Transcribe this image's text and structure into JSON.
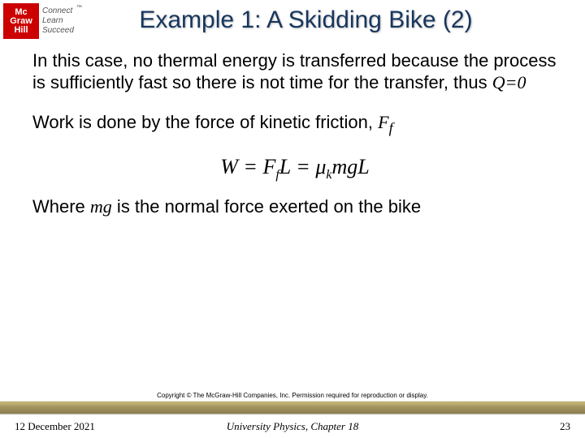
{
  "logo": {
    "line1": "Mc",
    "line2": "Graw",
    "line3": "Hill",
    "tag1": "Connect",
    "tag2": "Learn",
    "tag3": "Succeed",
    "tm": "™"
  },
  "title": "Example 1: A Skidding Bike (2)",
  "body": {
    "p1_a": "In this case, no thermal energy is transferred because the process is sufficiently fast so there is not time for the transfer, thus ",
    "p1_q": "Q=0",
    "p2_a": "Work is done by the force of kinetic friction, ",
    "p2_ff": "F",
    "p2_ff_sub": "f",
    "eq": "W = F",
    "eq_sub1": "f",
    "eq_mid": "L = μ",
    "eq_sub2": "k",
    "eq_end": "mgL",
    "p3_a": "Where ",
    "p3_mg": "mg",
    "p3_b": " is the normal force exerted on the bike"
  },
  "copyright": "Copyright © The McGraw-Hill Companies, Inc. Permission required for reproduction or display.",
  "footer": {
    "date": "12 December 2021",
    "center": "University Physics, Chapter 18",
    "page": "23"
  },
  "colors": {
    "title_color": "#17365d",
    "logo_bg": "#cc0000",
    "bar_gradient_top": "#c9b97a",
    "bar_gradient_bottom": "#8a7d4d"
  }
}
